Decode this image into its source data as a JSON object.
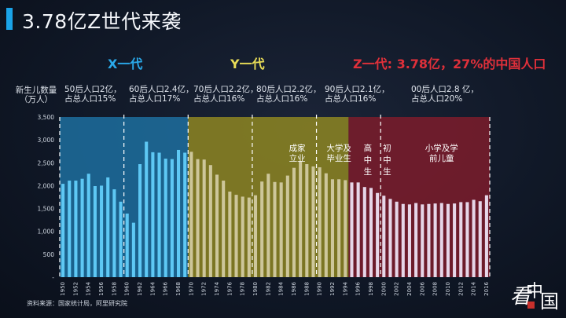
{
  "header": {
    "title": "3.78亿Z世代来袭"
  },
  "generations": {
    "x_label": "X一代",
    "y_label": "Y一代",
    "z_label": "Z一代: 3.78亿，27%的中国人口"
  },
  "colors": {
    "x_gen": "#2aa9ea",
    "y_gen": "#e8dc57",
    "z_gen": "#e0303a",
    "accent": "#1aa3e8",
    "x_bar": "#5ec8f4",
    "y_bar": "#cdc69a",
    "z_bar": "#e6d6e8"
  },
  "decades": [
    {
      "line1": "50后人口2亿，",
      "line2": "占总人口15%"
    },
    {
      "line1": "60后人口2.4亿，",
      "line2": "占总人口17%"
    },
    {
      "line1": "70后人口2.2亿，",
      "line2": "占总人口16%"
    },
    {
      "line1": "80后人口2.2亿，",
      "line2": "占总人口16%"
    },
    {
      "line1": "90后人口2.1亿，",
      "line2": "占总人口16%"
    },
    {
      "line1": "00后人口2.8 亿，",
      "line2": "占总人口20%"
    }
  ],
  "source": "资料来源：国家统计局，阿里研究院",
  "logo_text": "看中国",
  "chart_data": {
    "type": "bar",
    "ylabel": "新生儿数量（万人）",
    "ylim": [
      0,
      3500
    ],
    "yticks": [
      "-",
      "500",
      "1,000",
      "1,500",
      "2,000",
      "2,500",
      "3,000",
      "3,500"
    ],
    "grid": false,
    "x": [
      1950,
      1951,
      1952,
      1953,
      1954,
      1955,
      1956,
      1957,
      1958,
      1959,
      1960,
      1961,
      1962,
      1963,
      1964,
      1965,
      1966,
      1967,
      1968,
      1969,
      1970,
      1971,
      1972,
      1973,
      1974,
      1975,
      1976,
      1977,
      1978,
      1979,
      1980,
      1981,
      1982,
      1983,
      1984,
      1985,
      1986,
      1987,
      1988,
      1989,
      1990,
      1991,
      1992,
      1993,
      1994,
      1995,
      1996,
      1997,
      1998,
      1999,
      2000,
      2001,
      2002,
      2003,
      2004,
      2005,
      2006,
      2007,
      2008,
      2009,
      2010,
      2011,
      2012,
      2013,
      2014,
      2015,
      2016
    ],
    "values": [
      2040,
      2110,
      2110,
      2150,
      2260,
      1990,
      2000,
      2180,
      1920,
      1650,
      1390,
      1190,
      2470,
      2960,
      2730,
      2720,
      2590,
      2580,
      2780,
      2720,
      2740,
      2580,
      2570,
      2450,
      2240,
      2110,
      1870,
      1800,
      1760,
      1740,
      1790,
      2090,
      2260,
      2080,
      2070,
      2220,
      2390,
      2530,
      2470,
      2420,
      2400,
      2270,
      2140,
      2140,
      2120,
      2070,
      2070,
      1970,
      1950,
      1840,
      1780,
      1710,
      1650,
      1600,
      1590,
      1620,
      1590,
      1600,
      1610,
      1620,
      1600,
      1610,
      1640,
      1640,
      1690,
      1660,
      1790
    ],
    "xticks": [
      1950,
      1952,
      1954,
      1956,
      1958,
      1960,
      1962,
      1964,
      1966,
      1968,
      1970,
      1972,
      1974,
      1976,
      1978,
      1980,
      1982,
      1984,
      1986,
      1988,
      1990,
      1992,
      1994,
      1996,
      1998,
      2000,
      2002,
      2004,
      2006,
      2008,
      2010,
      2012,
      2014,
      2016
    ],
    "generation_bands": [
      {
        "name": "X一代",
        "from": 1950,
        "to": 1969,
        "color": "#1d6f9f"
      },
      {
        "name": "Y一代",
        "from": 1970,
        "to": 1994,
        "color": "#8e8622"
      },
      {
        "name": "Z一代",
        "from": 1995,
        "to": 2016,
        "color": "#7d1c2c"
      }
    ],
    "decade_dividers": [
      1960,
      1970,
      1980,
      1990,
      2000
    ],
    "annotations": [
      {
        "text": "成家\n立业",
        "year": 1986.5,
        "vertical": false
      },
      {
        "text": "大学及\n毕业生",
        "year": 1993,
        "vertical": false
      },
      {
        "text": "高中生",
        "year": 1997.5,
        "vertical": true
      },
      {
        "text": "初中生",
        "year": 2000.5,
        "vertical": true
      },
      {
        "text": "小学及学\n前儿童",
        "year": 2009,
        "vertical": false
      }
    ]
  }
}
